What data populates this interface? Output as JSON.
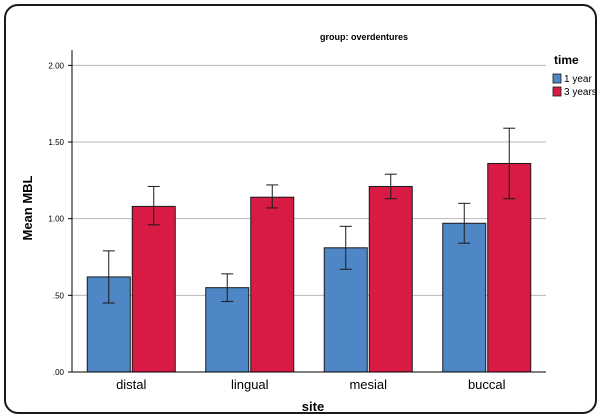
{
  "chart_data": {
    "type": "bar",
    "title": "group: overdentures",
    "xlabel": "site",
    "ylabel": "Mean MBL",
    "categories": [
      "distal",
      "lingual",
      "mesial",
      "buccal"
    ],
    "ylim": [
      0,
      2.1
    ],
    "yticks": [
      0,
      0.5,
      1.0,
      1.5,
      2.0
    ],
    "ytick_labels": [
      ".00",
      ".50",
      "1.00",
      "1.50",
      "2.00"
    ],
    "grid": "horizontal",
    "legend_title": "time",
    "legend_position": "top-right",
    "series": [
      {
        "name": "1 year",
        "color": "#4f86c6",
        "values": [
          0.62,
          0.55,
          0.81,
          0.97
        ],
        "error_low": [
          0.45,
          0.46,
          0.67,
          0.84
        ],
        "error_high": [
          0.79,
          0.64,
          0.95,
          1.1
        ]
      },
      {
        "name": "3 years",
        "color": "#d81a44",
        "values": [
          1.08,
          1.14,
          1.21,
          1.36
        ],
        "error_low": [
          0.96,
          1.07,
          1.13,
          1.13
        ],
        "error_high": [
          1.21,
          1.22,
          1.29,
          1.59
        ]
      }
    ]
  }
}
